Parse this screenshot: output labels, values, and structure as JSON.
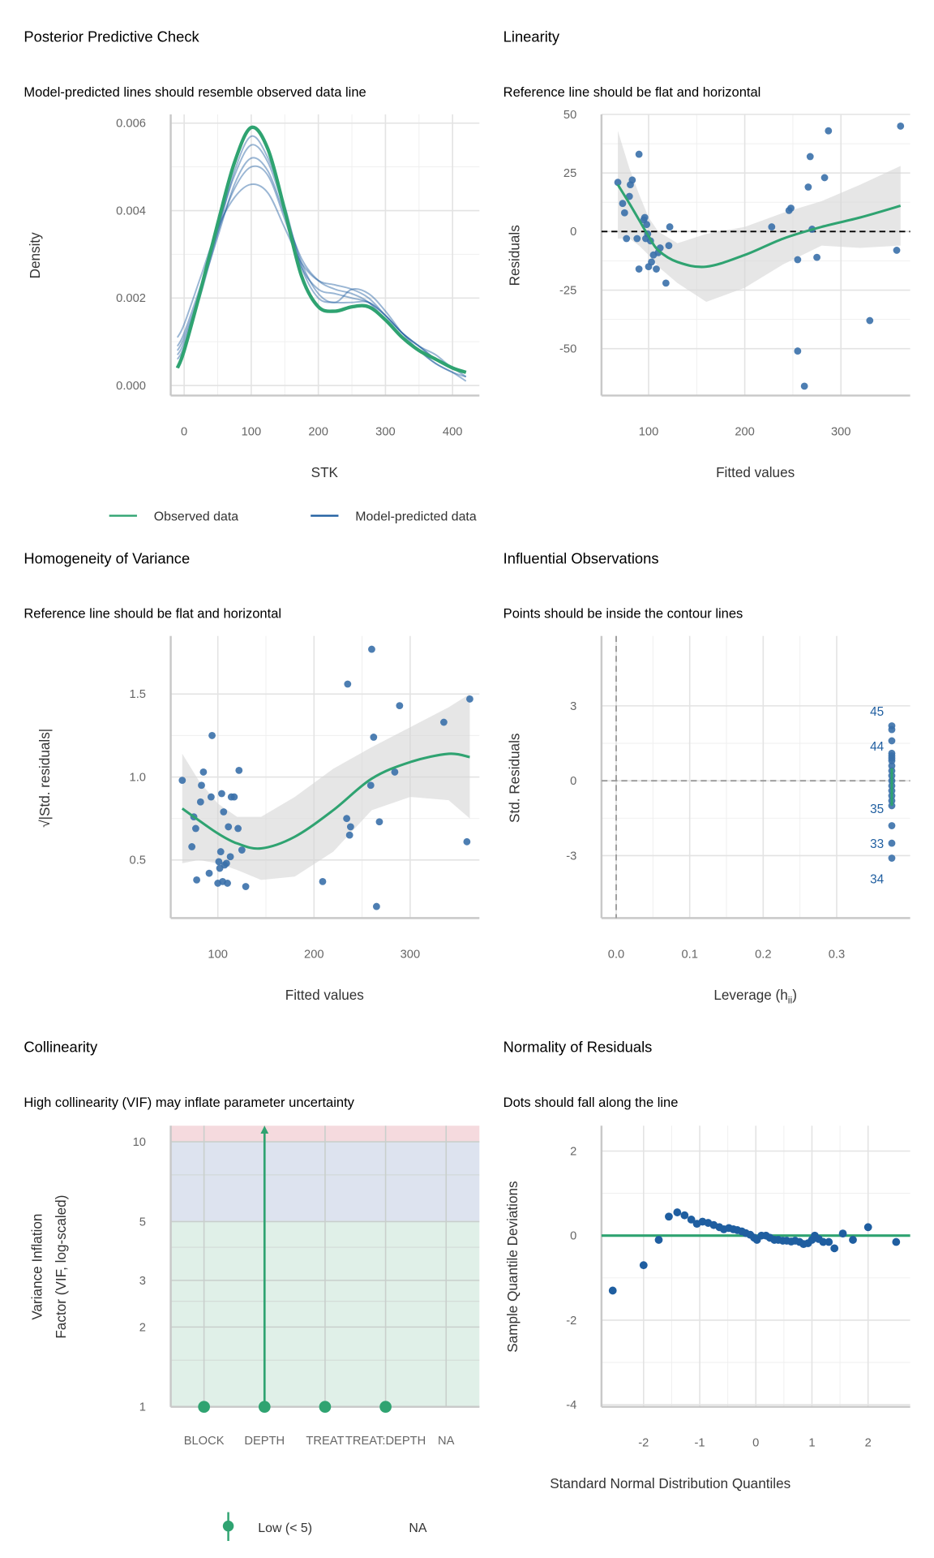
{
  "colors": {
    "observed": "#2fa371",
    "predicted": "#1f5ea0",
    "point": "#3a70aa",
    "band": "#d6d6d6",
    "zone_low": "#e0f0e8",
    "zone_mod": "#dde3ef",
    "zone_high": "#f5dade"
  },
  "chart_data": [
    {
      "type": "line",
      "title": "Posterior Predictive Check",
      "subtitle": "Model-predicted lines should resemble observed data line",
      "xlabel": "STK",
      "ylabel": "Density",
      "xlim": [
        -20,
        440
      ],
      "ylim": [
        0,
        0.006
      ],
      "xticks": [
        "0",
        "100",
        "200",
        "300",
        "400"
      ],
      "yticks": [
        "0.000",
        "0.002",
        "0.004",
        "0.006"
      ],
      "legend": {
        "position": "bottom",
        "items": [
          "Observed data",
          "Model-predicted data"
        ]
      },
      "observed": {
        "x": [
          -10,
          0,
          25,
          50,
          75,
          100,
          125,
          150,
          175,
          200,
          225,
          250,
          275,
          300,
          325,
          350,
          375,
          400,
          420
        ],
        "y": [
          0.0004,
          0.0008,
          0.0022,
          0.0037,
          0.0051,
          0.0059,
          0.0054,
          0.004,
          0.0025,
          0.0018,
          0.0017,
          0.0018,
          0.0018,
          0.0015,
          0.0011,
          0.0008,
          0.0006,
          0.0004,
          0.0003
        ]
      },
      "predicted": [
        {
          "x": [
            -10,
            0,
            25,
            50,
            75,
            100,
            125,
            150,
            175,
            200,
            225,
            250,
            275,
            300,
            325,
            350,
            375,
            400,
            420
          ],
          "y": [
            0.0009,
            0.0012,
            0.0023,
            0.0035,
            0.0045,
            0.005,
            0.0048,
            0.0038,
            0.0027,
            0.0022,
            0.0021,
            0.002,
            0.0019,
            0.0016,
            0.0012,
            0.0009,
            0.0006,
            0.0004,
            0.0002
          ]
        },
        {
          "x": [
            -10,
            0,
            25,
            50,
            75,
            100,
            125,
            150,
            175,
            200,
            225,
            250,
            275,
            300,
            325,
            350,
            375,
            400,
            420
          ],
          "y": [
            0.0007,
            0.001,
            0.0022,
            0.0036,
            0.0048,
            0.0055,
            0.0051,
            0.004,
            0.0028,
            0.0021,
            0.0019,
            0.0022,
            0.0021,
            0.0017,
            0.0012,
            0.0008,
            0.0005,
            0.0003,
            0.0002
          ]
        },
        {
          "x": [
            -10,
            0,
            25,
            50,
            75,
            100,
            125,
            150,
            175,
            200,
            225,
            250,
            275,
            300,
            325,
            350,
            375,
            400,
            420
          ],
          "y": [
            0.0011,
            0.0014,
            0.0025,
            0.0036,
            0.0043,
            0.0046,
            0.0044,
            0.0036,
            0.0028,
            0.0024,
            0.0023,
            0.0022,
            0.002,
            0.0016,
            0.0012,
            0.0009,
            0.0007,
            0.0004,
            0.0003
          ]
        },
        {
          "x": [
            -10,
            0,
            25,
            50,
            75,
            100,
            125,
            150,
            175,
            200,
            225,
            250,
            275,
            300,
            325,
            350,
            375,
            400,
            420
          ],
          "y": [
            0.0008,
            0.0011,
            0.0022,
            0.0034,
            0.0046,
            0.0052,
            0.0049,
            0.0039,
            0.0029,
            0.0024,
            0.0022,
            0.0021,
            0.0019,
            0.0015,
            0.0011,
            0.0008,
            0.0005,
            0.0003,
            0.0001
          ]
        },
        {
          "x": [
            -10,
            0,
            25,
            50,
            75,
            100,
            125,
            150,
            175,
            200,
            225,
            250,
            275,
            300,
            325,
            350,
            375,
            400,
            420
          ],
          "y": [
            0.0006,
            0.0009,
            0.0021,
            0.0035,
            0.0049,
            0.0057,
            0.0052,
            0.0041,
            0.0027,
            0.002,
            0.0019,
            0.0019,
            0.0019,
            0.0016,
            0.0012,
            0.0009,
            0.0006,
            0.0004,
            0.0003
          ]
        }
      ]
    },
    {
      "type": "scatter",
      "title": "Linearity",
      "subtitle": "Reference line should be flat and horizontal",
      "xlabel": "Fitted values",
      "ylabel": "Residuals",
      "xlim": [
        51,
        372
      ],
      "ylim": [
        -70,
        50
      ],
      "xticks": [
        "100",
        "200",
        "300"
      ],
      "yticks": [
        "-50",
        "-25",
        "0",
        "25",
        "50"
      ],
      "reference_line": 0,
      "points": [
        [
          68,
          21
        ],
        [
          73,
          12
        ],
        [
          75,
          8
        ],
        [
          77,
          -3
        ],
        [
          80,
          15
        ],
        [
          81,
          20
        ],
        [
          83,
          22
        ],
        [
          88,
          -3
        ],
        [
          90,
          33
        ],
        [
          90,
          -16
        ],
        [
          95,
          5
        ],
        [
          96,
          6
        ],
        [
          97,
          -3
        ],
        [
          98,
          3
        ],
        [
          99,
          -1
        ],
        [
          100,
          -15
        ],
        [
          102,
          -4
        ],
        [
          103,
          -13
        ],
        [
          105,
          -10
        ],
        [
          108,
          -16
        ],
        [
          110,
          -9
        ],
        [
          112,
          -7
        ],
        [
          118,
          -22
        ],
        [
          121,
          -6
        ],
        [
          122,
          2
        ],
        [
          228,
          2
        ],
        [
          246,
          9
        ],
        [
          248,
          10
        ],
        [
          255,
          -12
        ],
        [
          255,
          -51
        ],
        [
          262,
          -66
        ],
        [
          266,
          19
        ],
        [
          268,
          32
        ],
        [
          270,
          1
        ],
        [
          275,
          -11
        ],
        [
          283,
          23
        ],
        [
          287,
          43
        ],
        [
          330,
          -38
        ],
        [
          358,
          -8
        ],
        [
          362,
          45
        ]
      ],
      "smooth": {
        "x": [
          68,
          80,
          90,
          100,
          110,
          130,
          160,
          200,
          240,
          280,
          320,
          362
        ],
        "y": [
          20,
          12,
          5,
          -2,
          -8,
          -13,
          -15,
          -10,
          -3,
          2,
          6,
          11
        ],
        "lower": [
          -3,
          -3,
          -6,
          -10,
          -15,
          -22,
          -30,
          -24,
          -14,
          -6,
          -7,
          -6
        ],
        "upper": [
          43,
          27,
          16,
          6,
          0,
          -5,
          -1,
          2,
          8,
          13,
          20,
          28
        ]
      }
    },
    {
      "type": "scatter",
      "title": "Homogeneity of Variance",
      "subtitle": "Reference line should be flat and horizontal",
      "xlabel": "Fitted values",
      "ylabel": "√|Std. residuals|",
      "xlim": [
        51,
        372
      ],
      "ylim": [
        0.15,
        1.85
      ],
      "xticks": [
        "100",
        "200",
        "300"
      ],
      "yticks": [
        "0.5",
        "1.0",
        "1.5"
      ],
      "points": [
        [
          63,
          0.98
        ],
        [
          73,
          0.58
        ],
        [
          75,
          0.76
        ],
        [
          77,
          0.69
        ],
        [
          78,
          0.38
        ],
        [
          82,
          0.85
        ],
        [
          83,
          0.95
        ],
        [
          85,
          1.03
        ],
        [
          91,
          0.42
        ],
        [
          93,
          0.88
        ],
        [
          94,
          1.25
        ],
        [
          100,
          0.36
        ],
        [
          101,
          0.49
        ],
        [
          102,
          0.45
        ],
        [
          103,
          0.55
        ],
        [
          104,
          0.9
        ],
        [
          105,
          0.37
        ],
        [
          106,
          0.79
        ],
        [
          107,
          0.47
        ],
        [
          109,
          0.48
        ],
        [
          110,
          0.36
        ],
        [
          111,
          0.7
        ],
        [
          113,
          0.52
        ],
        [
          114,
          0.88
        ],
        [
          117,
          0.88
        ],
        [
          121,
          0.69
        ],
        [
          122,
          1.04
        ],
        [
          125,
          0.56
        ],
        [
          129,
          0.34
        ],
        [
          209,
          0.37
        ],
        [
          234,
          0.75
        ],
        [
          235,
          1.56
        ],
        [
          238,
          0.7
        ],
        [
          237,
          0.65
        ],
        [
          259,
          0.95
        ],
        [
          260,
          1.77
        ],
        [
          262,
          1.24
        ],
        [
          265,
          0.22
        ],
        [
          268,
          0.73
        ],
        [
          284,
          1.03
        ],
        [
          289,
          1.43
        ],
        [
          335,
          1.33
        ],
        [
          359,
          0.61
        ],
        [
          362,
          1.47
        ]
      ],
      "smooth": {
        "x": [
          63,
          80,
          100,
          120,
          145,
          180,
          220,
          260,
          300,
          340,
          362
        ],
        "y": [
          0.81,
          0.74,
          0.66,
          0.6,
          0.57,
          0.64,
          0.8,
          0.99,
          1.09,
          1.14,
          1.12
        ],
        "lower": [
          0.48,
          0.5,
          0.48,
          0.44,
          0.38,
          0.4,
          0.55,
          0.8,
          0.88,
          0.86,
          0.75
        ],
        "upper": [
          1.14,
          0.98,
          0.84,
          0.76,
          0.76,
          0.88,
          1.05,
          1.18,
          1.3,
          1.42,
          1.5
        ]
      }
    },
    {
      "type": "scatter",
      "title": "Influential Observations",
      "subtitle": "Points should be inside the contour lines",
      "xlabel": "Leverage (h",
      "xlabel_sub": "ii",
      "xlabel_end": ")",
      "ylabel": "Std. Residuals",
      "xlim": [
        -0.02,
        0.4
      ],
      "ylim": [
        -5.5,
        5.8
      ],
      "xticks": [
        "0.0",
        "0.1",
        "0.2",
        "0.3"
      ],
      "yticks": [
        "-3",
        "0",
        "3"
      ],
      "leverage": 0.375,
      "std_residuals": [
        2.2,
        2.05,
        1.6,
        1.1,
        1.0,
        0.9,
        0.8,
        0.6,
        0.4,
        0.2,
        0,
        -0.2,
        -0.4,
        -0.6,
        -0.8,
        -1.0,
        -1.8,
        -2.5,
        -3.1
      ],
      "smooth_range": [
        -1.0,
        0.5
      ],
      "labels": [
        {
          "text": "45",
          "y": 2.8
        },
        {
          "text": "44",
          "y": 1.4
        },
        {
          "text": "35",
          "y": -1.1
        },
        {
          "text": "33",
          "y": -2.5
        },
        {
          "text": "34",
          "y": -3.9
        }
      ]
    },
    {
      "type": "bar",
      "title": "Collinearity",
      "subtitle": "High collinearity (VIF) may inflate parameter uncertainty",
      "xlabel": "",
      "ylabel": "Variance Inflation",
      "ylabel2": "Factor (VIF, log-scaled)",
      "ylim": [
        1,
        11.5
      ],
      "log_scale": true,
      "yticks": [
        "1",
        "2",
        "3",
        "5",
        "10"
      ],
      "categories": [
        "BLOCK",
        "DEPTH",
        "TREAT",
        "TREAT:DEPTH",
        "NA"
      ],
      "values": [
        1,
        1,
        1,
        1,
        null
      ],
      "ci_upper": [
        null,
        11.5,
        null,
        null,
        null
      ],
      "legend": {
        "position": "bottom",
        "items": [
          "Low (< 5)",
          "NA"
        ]
      }
    },
    {
      "type": "scatter",
      "title": "Normality of Residuals",
      "subtitle": "Dots should fall along the line",
      "xlabel": "Standard Normal Distribution Quantiles",
      "ylabel": "Sample Quantile Deviations",
      "xlim": [
        -2.75,
        2.75
      ],
      "ylim": [
        -4.05,
        2.6
      ],
      "xticks": [
        "-2",
        "-1",
        "0",
        "1",
        "2"
      ],
      "yticks": [
        "-4",
        "-2",
        "0",
        "2"
      ],
      "reference_line": 0,
      "points": [
        [
          -2.55,
          -1.3
        ],
        [
          -2.0,
          -0.7
        ],
        [
          -1.73,
          -0.1
        ],
        [
          -1.55,
          0.45
        ],
        [
          -1.4,
          0.55
        ],
        [
          -1.27,
          0.48
        ],
        [
          -1.15,
          0.38
        ],
        [
          -1.05,
          0.28
        ],
        [
          -0.95,
          0.33
        ],
        [
          -0.85,
          0.3
        ],
        [
          -0.75,
          0.25
        ],
        [
          -0.65,
          0.2
        ],
        [
          -0.57,
          0.15
        ],
        [
          -0.48,
          0.18
        ],
        [
          -0.4,
          0.15
        ],
        [
          -0.33,
          0.13
        ],
        [
          -0.25,
          0.1
        ],
        [
          -0.18,
          0.06
        ],
        [
          -0.1,
          0.02
        ],
        [
          -0.03,
          -0.05
        ],
        [
          0.02,
          -0.1
        ],
        [
          0.1,
          0
        ],
        [
          0.18,
          0
        ],
        [
          0.25,
          -0.05
        ],
        [
          0.33,
          -0.1
        ],
        [
          0.4,
          -0.1
        ],
        [
          0.48,
          -0.12
        ],
        [
          0.55,
          -0.12
        ],
        [
          0.63,
          -0.14
        ],
        [
          0.7,
          -0.12
        ],
        [
          0.78,
          -0.15
        ],
        [
          0.85,
          -0.2
        ],
        [
          0.93,
          -0.18
        ],
        [
          1.0,
          -0.1
        ],
        [
          1.05,
          0
        ],
        [
          1.12,
          -0.08
        ],
        [
          1.2,
          -0.15
        ],
        [
          1.3,
          -0.15
        ],
        [
          1.4,
          -0.3
        ],
        [
          1.55,
          0.05
        ],
        [
          1.73,
          -0.1
        ],
        [
          2.0,
          0.2
        ],
        [
          2.5,
          -0.15
        ]
      ]
    }
  ]
}
